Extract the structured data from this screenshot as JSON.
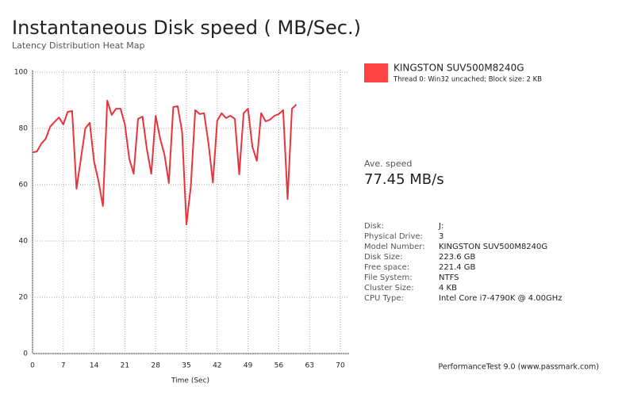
{
  "chart_data": {
    "type": "line",
    "title": "Instantaneous Disk speed ( MB/Sec.)",
    "subtitle": "Latency Distribution Heat Map",
    "x_label": "Time (Sec)",
    "x": [
      0,
      1,
      2,
      3,
      4,
      5,
      6,
      7,
      8,
      9,
      10,
      11,
      12,
      13,
      14,
      15,
      16,
      17,
      18,
      19,
      20,
      21,
      22,
      23,
      24,
      25,
      26,
      27,
      28,
      29,
      30,
      31,
      32,
      33,
      34,
      35,
      36,
      37,
      38,
      39,
      40,
      41,
      42,
      43,
      44,
      45,
      46,
      47,
      48,
      49,
      50,
      51,
      52,
      53,
      54,
      55,
      56,
      57,
      58,
      59,
      60
    ],
    "series": [
      {
        "name": "KINGSTON SUV500M8240G",
        "detail": "Thread 0: Win32 uncached; Block size: 2 KB",
        "color": "#e8343c",
        "legend_color": "#ff4444",
        "values": [
          71.5,
          71.8,
          74.6,
          76.3,
          80.6,
          82.3,
          83.9,
          81.4,
          85.9,
          86.2,
          58.6,
          69.3,
          80.0,
          82.0,
          68.2,
          61.4,
          52.4,
          89.9,
          84.8,
          87.0,
          87.0,
          81.4,
          69.3,
          63.9,
          83.4,
          84.2,
          72.7,
          63.9,
          84.5,
          76.6,
          70.7,
          60.6,
          87.6,
          87.9,
          78.9,
          45.9,
          59.4,
          86.5,
          85.1,
          85.4,
          74.9,
          60.8,
          82.8,
          85.4,
          83.7,
          84.5,
          83.4,
          63.7,
          85.4,
          87.0,
          73.5,
          68.5,
          85.4,
          82.5,
          83.1,
          84.5,
          85.1,
          86.5,
          54.9,
          87.0,
          88.5
        ]
      }
    ],
    "xlim": [
      0,
      70
    ],
    "xticks": [
      0,
      7,
      14,
      21,
      28,
      35,
      42,
      49,
      56,
      63,
      70
    ],
    "ylim": [
      0,
      100
    ],
    "yticks": [
      0,
      20,
      40,
      60,
      80,
      100
    ],
    "grid": true
  },
  "summary": {
    "label": "Ave. speed",
    "value": "77.45 MB/s"
  },
  "info": [
    [
      "Disk:",
      "J:"
    ],
    [
      "Physical Drive:",
      "3"
    ],
    [
      "Model Number:",
      "KINGSTON SUV500M8240G"
    ],
    [
      "Disk Size:",
      "223.6 GB"
    ],
    [
      "Free space:",
      "221.4 GB"
    ],
    [
      "File System:",
      "NTFS"
    ],
    [
      "Cluster Size:",
      "4 KB"
    ],
    [
      "CPU Type:",
      "Intel Core i7-4790K @ 4.00GHz"
    ]
  ],
  "footer": "PerformanceTest 9.0 (www.passmark.com)"
}
